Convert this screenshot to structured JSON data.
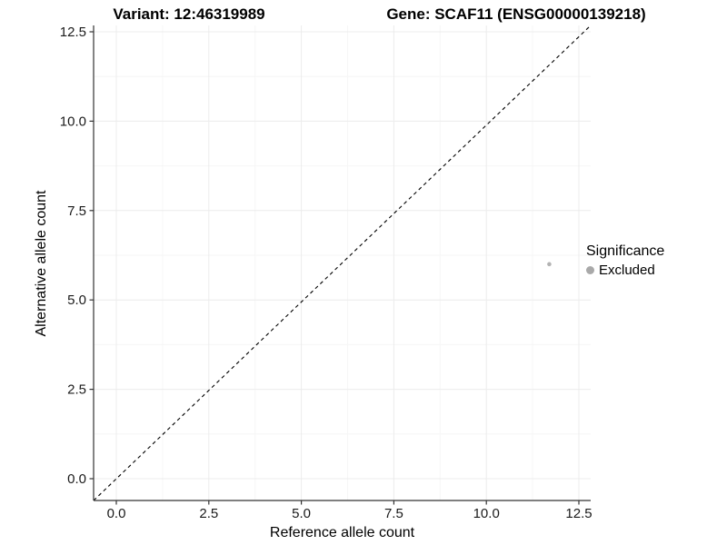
{
  "titles": {
    "variant": "Variant: 12:46319989",
    "gene": "Gene: SCAF11 (ENSG00000139218)"
  },
  "axes": {
    "x_label": "Reference allele count",
    "y_label": "Alternative allele count"
  },
  "legend": {
    "title": "Significance",
    "items": [
      {
        "label": "Excluded",
        "color": "#a9a9a9"
      }
    ]
  },
  "colors": {
    "background": "#ffffff",
    "axis_line": "#333333",
    "tick_mark": "#333333",
    "tick_label": "#1a1a1a",
    "grid_major": "#ececec",
    "grid_minor": "#f6f6f6",
    "reference_line": "#000000",
    "point": "#b3b3b3"
  },
  "chart_data": {
    "type": "scatter",
    "title": "Variant: 12:46319989   |   Gene: SCAF11 (ENSG00000139218)",
    "xlabel": "Reference allele count",
    "ylabel": "Alternative allele count",
    "xlim": [
      -0.62,
      12.85
    ],
    "ylim": [
      -0.62,
      13.3
    ],
    "x_ticks": {
      "values": [
        0,
        2.5,
        5,
        7.5,
        10,
        12.5
      ],
      "labels": [
        "0.0",
        "2.5",
        "5.0",
        "7.5",
        "10.0",
        "12.5"
      ]
    },
    "y_ticks": {
      "values": [
        0,
        2.5,
        5,
        7.5,
        10,
        12.5
      ],
      "labels": [
        "0.0",
        "2.5",
        "5.0",
        "7.5",
        "10.0",
        "12.5"
      ]
    },
    "grid": "major and minor gridlines, light gray, white panel background",
    "legend_position": "right",
    "reference_line": {
      "type": "identity y=x",
      "style": "dashed",
      "color": "#000000"
    },
    "series": [
      {
        "name": "Excluded",
        "color": "#b3b3b3",
        "point_radius": 2.3,
        "points": [
          [
            11.7,
            6.0
          ]
        ]
      }
    ]
  }
}
